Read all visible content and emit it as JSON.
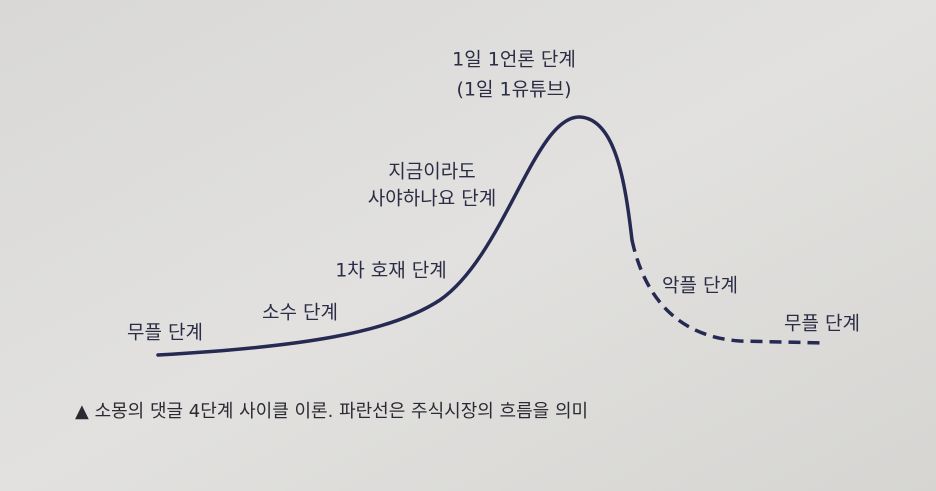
{
  "diagram": {
    "peak": [
      "1일 1언론 단계",
      "(1일 1유튜브)"
    ],
    "rising": [
      "지금이라도",
      "사야하나요 단계"
    ],
    "first_news": "1차 호재 단계",
    "few": "소수 단계",
    "no_comments_start": "무플 단계",
    "hate_comments": "악플 단계",
    "no_comments_end": "무플 단계",
    "caption": "▲ 소몽의 댓글 4단계 사이클 이론. 파란선은 주식시장의 흐름을 의미"
  }
}
